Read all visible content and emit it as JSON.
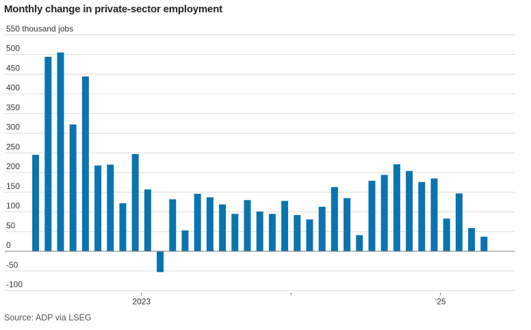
{
  "title": "Monthly change in private-sector employment",
  "source": "Source: ADP via LSEG",
  "colors": {
    "bar": "#0a74b0",
    "grid": "#dcdcdc",
    "zero_line": "#777777"
  },
  "chart_data": {
    "type": "bar",
    "title": "Monthly change in private-sector employment",
    "ylabel": "550 thousand jobs",
    "y_unit_label": "thousand jobs",
    "ylim": [
      -100,
      550
    ],
    "y_ticks": [
      550,
      500,
      450,
      400,
      350,
      300,
      250,
      200,
      150,
      100,
      50,
      0,
      -50,
      -100
    ],
    "y_tick_labels": [
      "550 thousand jobs",
      "500",
      "450",
      "400",
      "350",
      "300",
      "250",
      "200",
      "150",
      "100",
      "50",
      "0",
      "-50",
      "-100"
    ],
    "x_labels": [
      {
        "text": "2023",
        "index": 8.5
      },
      {
        "text": "’25",
        "index": 32.5
      }
    ],
    "x_minor_ticks": [
      20.5
    ],
    "grid": true,
    "values": [
      245,
      494,
      505,
      322,
      444,
      218,
      220,
      122,
      247,
      157,
      -53,
      132,
      53,
      146,
      137,
      119,
      95,
      130,
      101,
      95,
      128,
      92,
      81,
      113,
      163,
      135,
      41,
      179,
      194,
      221,
      204,
      176,
      185,
      83,
      147,
      59,
      37
    ]
  }
}
